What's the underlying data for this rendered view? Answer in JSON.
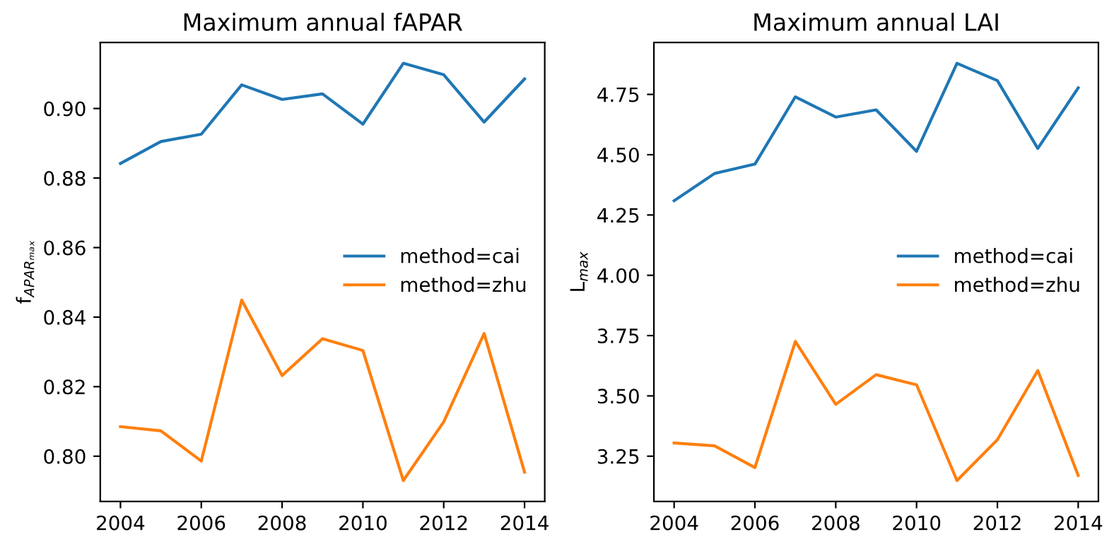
{
  "chart_data": [
    {
      "type": "line",
      "title": "Maximum annual fAPAR",
      "ylabel": "f$_{APARₘₐₓ}$",
      "x": [
        2004,
        2005,
        2006,
        2007,
        2008,
        2009,
        2010,
        2011,
        2012,
        2013,
        2014
      ],
      "series": [
        {
          "name": "method=cai",
          "color": "#1f77b4",
          "values": [
            0.8842,
            0.8905,
            0.8926,
            0.9068,
            0.9026,
            0.9042,
            0.8955,
            0.913,
            0.9097,
            0.8961,
            0.9085
          ]
        },
        {
          "name": "method=zhu",
          "color": "#ff7f0e",
          "values": [
            0.8085,
            0.8073,
            0.7986,
            0.8449,
            0.8232,
            0.8338,
            0.8304,
            0.793,
            0.8099,
            0.8353,
            0.7954
          ]
        }
      ],
      "xlim": [
        2003.5,
        2014.5
      ],
      "xticks": [
        2004,
        2006,
        2008,
        2010,
        2012,
        2014
      ],
      "ylim": [
        0.787,
        0.919
      ],
      "yticks": [
        {
          "value": 0.8,
          "label": "0.80"
        },
        0.82,
        0.84,
        0.86,
        0.88,
        {
          "value": 0.9,
          "label": "0.90"
        }
      ],
      "legend": "right",
      "grid": false
    },
    {
      "type": "line",
      "title": "Maximum annual LAI",
      "ylabel": "L$_{max}$",
      "x": [
        2004,
        2005,
        2006,
        2007,
        2008,
        2009,
        2010,
        2011,
        2012,
        2013,
        2014
      ],
      "series": [
        {
          "name": "method=cai",
          "color": "#1f77b4",
          "values": [
            4.309,
            4.422,
            4.461,
            4.74,
            4.656,
            4.686,
            4.514,
            4.879,
            4.807,
            4.526,
            4.777
          ]
        },
        {
          "name": "method=zhu",
          "color": "#ff7f0e",
          "values": [
            3.305,
            3.293,
            3.203,
            3.726,
            3.465,
            3.588,
            3.546,
            3.149,
            3.318,
            3.605,
            3.17
          ]
        }
      ],
      "xlim": [
        2003.5,
        2014.5
      ],
      "xticks": [
        2004,
        2006,
        2008,
        2010,
        2012,
        2014
      ],
      "ylim": [
        3.0625,
        4.9655
      ],
      "yticks": [
        {
          "value": 3.25,
          "label": "3.25"
        },
        {
          "value": 3.5,
          "label": "3.50"
        },
        {
          "value": 3.75,
          "label": "3.75"
        },
        {
          "value": 4.0,
          "label": "4.00"
        },
        {
          "value": 4.25,
          "label": "4.25"
        },
        {
          "value": 4.5,
          "label": "4.50"
        },
        {
          "value": 4.75,
          "label": "4.75"
        }
      ],
      "legend": "right",
      "grid": false
    }
  ]
}
